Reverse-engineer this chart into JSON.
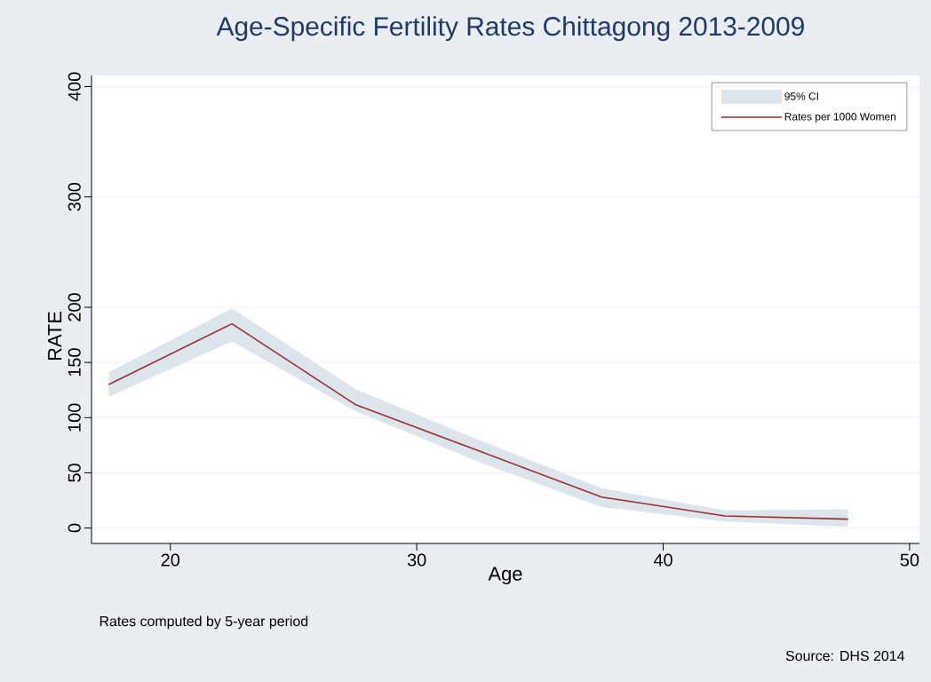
{
  "chart_data": {
    "type": "line",
    "title": "Age-Specific Fertility Rates Chittagong 2013-2009",
    "xlabel": "Age",
    "ylabel": "RATE",
    "x": [
      17.5,
      22.5,
      27.5,
      32.5,
      37.5,
      42.5,
      47.5
    ],
    "series": [
      {
        "name": "Rates per 1000 Women",
        "color": "#9b2d30",
        "values": [
          130,
          185,
          112,
          70,
          28,
          11,
          8
        ],
        "lower": [
          119,
          169,
          106,
          60,
          19,
          6,
          1
        ],
        "upper": [
          141,
          199,
          126,
          80,
          36,
          16,
          17
        ]
      }
    ],
    "xlim": [
      16.8,
      50.4
    ],
    "ylim": [
      -14,
      410
    ],
    "xticks": [
      20,
      30,
      40,
      50
    ],
    "yticks": [
      0,
      50,
      100,
      150,
      200,
      300,
      400
    ],
    "grid": "y",
    "legend": "top right",
    "marker": "none",
    "line_style": "solid",
    "annotations": [
      "95% CI",
      "Rates computed by 5-year period",
      "Source: DHS 2014"
    ]
  }
}
